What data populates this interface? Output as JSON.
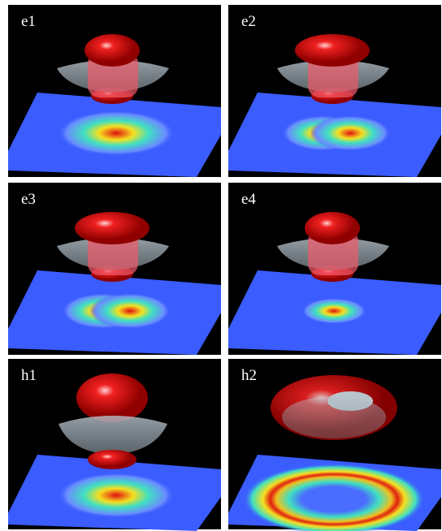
{
  "panels": [
    {
      "label": "e1"
    },
    {
      "label": "e2"
    },
    {
      "label": "e3"
    },
    {
      "label": "e4"
    },
    {
      "label": "h1"
    },
    {
      "label": "h2"
    }
  ]
}
